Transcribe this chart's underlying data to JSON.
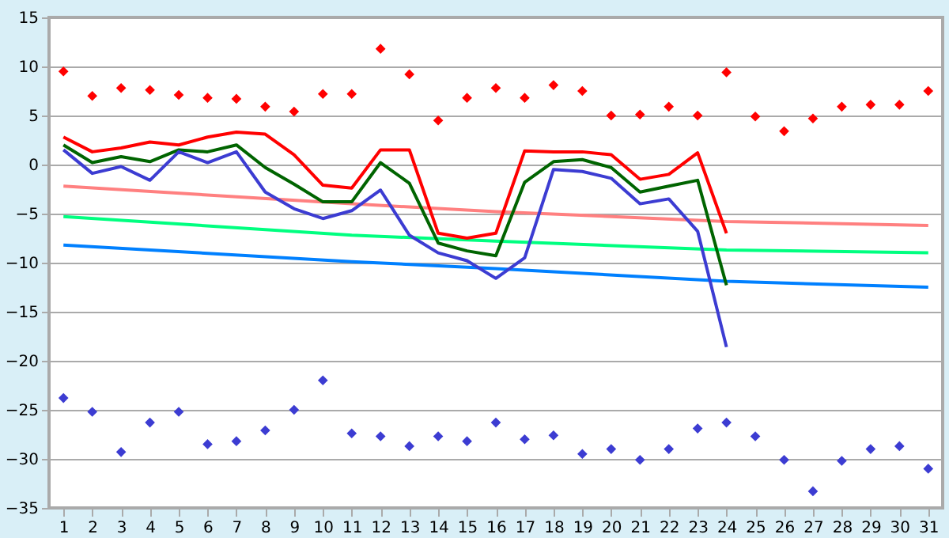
{
  "chart_data": {
    "type": "line",
    "x": [
      1,
      2,
      3,
      4,
      5,
      6,
      7,
      8,
      9,
      10,
      11,
      12,
      13,
      14,
      15,
      16,
      17,
      18,
      19,
      20,
      21,
      22,
      23,
      24,
      25,
      26,
      27,
      28,
      29,
      30,
      31
    ],
    "xlim": [
      0.5,
      31.5
    ],
    "xticks": [
      1,
      2,
      3,
      4,
      5,
      6,
      7,
      8,
      9,
      10,
      11,
      12,
      13,
      14,
      15,
      16,
      17,
      18,
      19,
      20,
      21,
      22,
      23,
      24,
      25,
      26,
      27,
      28,
      29,
      30,
      31
    ],
    "ylim": [
      -35,
      15
    ],
    "yticks": [
      -35,
      -30,
      -25,
      -20,
      -15,
      -10,
      -5,
      0,
      5,
      10,
      15
    ],
    "grid": "y",
    "legend": false,
    "series": [
      {
        "type": "line",
        "color": "#ff8080",
        "marker": "none",
        "x": [
          1,
          11,
          16,
          24,
          31
        ],
        "values": [
          -2.2,
          -4.0,
          -4.8,
          -5.8,
          -6.2
        ]
      },
      {
        "color": "#00ff80",
        "marker": "none",
        "x": [
          1,
          11,
          16,
          24,
          31
        ],
        "values": [
          -5.3,
          -7.2,
          -7.8,
          -8.7,
          -9.0
        ]
      },
      {
        "type": "line",
        "color": "#0080ff",
        "marker": "none",
        "x": [
          1,
          11,
          16,
          24,
          31
        ],
        "values": [
          -8.2,
          -9.9,
          -10.6,
          -11.9,
          -12.5
        ]
      },
      {
        "type": "line",
        "color": "#ff0000",
        "marker": "none",
        "x": [
          1,
          2,
          3,
          4,
          5,
          6,
          7,
          8,
          9,
          10,
          11,
          12,
          13,
          14,
          15,
          16,
          17,
          18,
          19,
          20,
          21,
          22,
          23,
          24
        ],
        "values": [
          2.8,
          1.3,
          1.7,
          2.3,
          2.0,
          2.8,
          3.3,
          3.1,
          1.0,
          -2.1,
          -2.4,
          1.5,
          1.5,
          -7.0,
          -7.5,
          -7.0,
          1.4,
          1.3,
          1.3,
          1.0,
          -1.5,
          -1.0,
          1.2,
          -7.0
        ]
      },
      {
        "type": "line",
        "color": "#006400",
        "marker": "none",
        "x": [
          1,
          2,
          3,
          4,
          5,
          6,
          7,
          8,
          9,
          10,
          11,
          12,
          13,
          14,
          15,
          16,
          17,
          18,
          19,
          20,
          21,
          22,
          23,
          24
        ],
        "values": [
          2.0,
          0.2,
          0.8,
          0.3,
          1.5,
          1.3,
          2.0,
          -0.3,
          -2.0,
          -3.8,
          -3.8,
          0.2,
          -1.9,
          -8.0,
          -8.8,
          -9.3,
          -1.8,
          0.3,
          0.5,
          -0.3,
          -2.8,
          -2.2,
          -1.6,
          -12.3
        ]
      },
      {
        "type": "line",
        "color": "#3c3cd2",
        "marker": "none",
        "x": [
          1,
          2,
          3,
          4,
          5,
          6,
          7,
          8,
          9,
          10,
          11,
          12,
          13,
          14,
          15,
          16,
          17,
          18,
          19,
          20,
          21,
          22,
          23,
          24
        ],
        "values": [
          1.5,
          -0.9,
          -0.2,
          -1.6,
          1.3,
          0.2,
          1.3,
          -2.8,
          -4.5,
          -5.5,
          -4.7,
          -2.6,
          -7.2,
          -9.0,
          -9.8,
          -11.6,
          -9.5,
          -0.5,
          -0.7,
          -1.4,
          -4.0,
          -3.5,
          -6.8,
          -18.6
        ]
      },
      {
        "type": "scatter",
        "color": "#ff0000",
        "marker": "diamond",
        "values": [
          9.5,
          7.0,
          7.8,
          7.6,
          7.1,
          6.8,
          6.7,
          5.9,
          5.4,
          7.2,
          7.2,
          11.8,
          9.2,
          4.5,
          6.8,
          7.8,
          6.8,
          8.1,
          7.5,
          5.0,
          5.1,
          5.9,
          5.0,
          9.4,
          4.9,
          3.4,
          4.7,
          5.9,
          6.1,
          6.1,
          7.5
        ]
      },
      {
        "type": "scatter",
        "color": "#3c3cd2",
        "marker": "diamond",
        "values": [
          -23.8,
          -25.2,
          -29.3,
          -26.3,
          -25.2,
          -28.5,
          -28.2,
          -27.1,
          -25.0,
          -22.0,
          -27.4,
          -27.7,
          -28.7,
          -27.7,
          -28.2,
          -26.3,
          -28.0,
          -27.6,
          -29.5,
          -29.0,
          -30.1,
          -29.0,
          -26.9,
          -26.3,
          -27.7,
          -30.1,
          -33.3,
          -30.2,
          -29.0,
          -28.7,
          -31.0
        ]
      }
    ]
  }
}
